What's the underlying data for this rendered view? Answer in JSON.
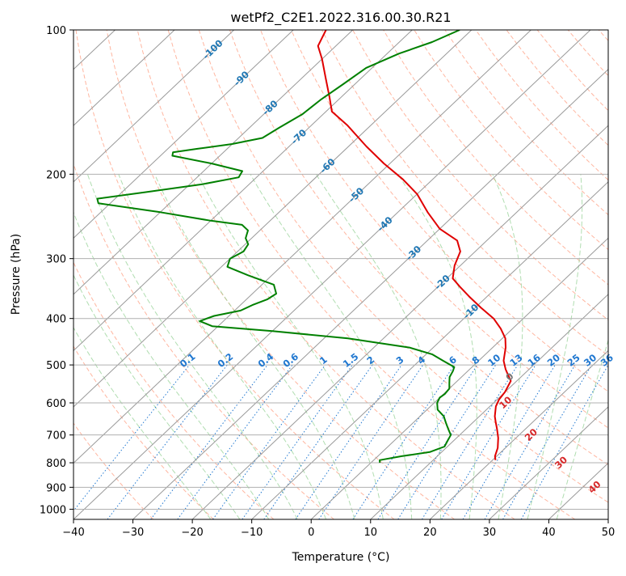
{
  "chart_data": {
    "type": "line",
    "title": "wetPf2_C2E1.2022.316.00.30.R21",
    "xlabel": "Temperature (°C)",
    "ylabel": "Pressure (hPa)",
    "xlim": [
      -40,
      50
    ],
    "ylim": [
      1050,
      100
    ],
    "y_scale": "log",
    "grid": true,
    "x_ticks": [
      "−40",
      "−30",
      "−20",
      "−10",
      "0",
      "10",
      "20",
      "30",
      "40",
      "50"
    ],
    "y_ticks": [
      {
        "p": 100,
        "label": "100"
      },
      {
        "p": 200,
        "label": "200"
      },
      {
        "p": 300,
        "label": "300"
      },
      {
        "p": 400,
        "label": "400"
      },
      {
        "p": 500,
        "label": "500"
      },
      {
        "p": 600,
        "label": "600"
      },
      {
        "p": 700,
        "label": "700"
      },
      {
        "p": 800,
        "label": "800"
      },
      {
        "p": 900,
        "label": "900"
      },
      {
        "p": 1000,
        "label": "1000"
      }
    ],
    "skew": 30,
    "colors": {
      "temperature": "#e00000",
      "dewpoint": "#008000",
      "isotherm": "#999999",
      "dry_adiabat": "#ff9e80",
      "moist_adiabat": "#8fcf8f",
      "mixing_ratio": "#1f77d0",
      "isotherm_labels": "#1f77b4",
      "cross_labels": "#d62728",
      "zero_label": "#777777"
    },
    "series": [
      {
        "key": "temperature",
        "points": [
          [
            20.5,
            790
          ],
          [
            19.7,
            775
          ],
          [
            18.7,
            745
          ],
          [
            17.0,
            710
          ],
          [
            15.2,
            680
          ],
          [
            13.9,
            660
          ],
          [
            12.6,
            640
          ],
          [
            11.0,
            610
          ],
          [
            10.3,
            590
          ],
          [
            10.0,
            570
          ],
          [
            9.0,
            540
          ],
          [
            7.0,
            520
          ],
          [
            6.0,
            510
          ],
          [
            4.2,
            490
          ],
          [
            2.2,
            460
          ],
          [
            0.5,
            440
          ],
          [
            -2.0,
            420
          ],
          [
            -5.0,
            400
          ],
          [
            -9.0,
            380
          ],
          [
            -13.0,
            360
          ],
          [
            -16.0,
            345
          ],
          [
            -19.0,
            330
          ],
          [
            -21.0,
            310
          ],
          [
            -22.5,
            290
          ],
          [
            -25.0,
            275
          ],
          [
            -30.0,
            260
          ],
          [
            -35.0,
            240
          ],
          [
            -40.0,
            220
          ],
          [
            -45.0,
            205
          ],
          [
            -51.0,
            190
          ],
          [
            -57.0,
            175
          ],
          [
            -64.0,
            158
          ],
          [
            -69.0,
            148
          ],
          [
            -72.0,
            138
          ],
          [
            -76.0,
            126
          ],
          [
            -80.0,
            115
          ],
          [
            -83.0,
            108
          ],
          [
            -84.5,
            100
          ]
        ]
      },
      {
        "key": "dewpoint",
        "points": [
          [
            1.5,
            800
          ],
          [
            1.0,
            790
          ],
          [
            4.0,
            775
          ],
          [
            8.0,
            760
          ],
          [
            9.5,
            740
          ],
          [
            9.0,
            720
          ],
          [
            8.5,
            700
          ],
          [
            7.0,
            680
          ],
          [
            5.5,
            660
          ],
          [
            4.0,
            640
          ],
          [
            1.8,
            620
          ],
          [
            0.5,
            600
          ],
          [
            0.0,
            585
          ],
          [
            0.2,
            575
          ],
          [
            0.0,
            560
          ],
          [
            -1.0,
            545
          ],
          [
            -2.0,
            530
          ],
          [
            -2.5,
            515
          ],
          [
            -3.0,
            505
          ],
          [
            -6.0,
            490
          ],
          [
            -9.0,
            475
          ],
          [
            -14.0,
            460
          ],
          [
            -26.0,
            440
          ],
          [
            -40.0,
            425
          ],
          [
            -51.0,
            415
          ],
          [
            -54.0,
            405
          ],
          [
            -52.5,
            395
          ],
          [
            -49.0,
            385
          ],
          [
            -48.0,
            375
          ],
          [
            -46.5,
            365
          ],
          [
            -46.0,
            355
          ],
          [
            -48.0,
            340
          ],
          [
            -54.0,
            325
          ],
          [
            -59.0,
            312
          ],
          [
            -60.0,
            300
          ],
          [
            -59.0,
            290
          ],
          [
            -59.5,
            280
          ],
          [
            -61.0,
            272
          ],
          [
            -62.0,
            262
          ],
          [
            -64.0,
            255
          ],
          [
            -70.0,
            250
          ],
          [
            -80.0,
            240
          ],
          [
            -92.0,
            230
          ],
          [
            -93.0,
            225
          ],
          [
            -86.0,
            218
          ],
          [
            -78.0,
            210
          ],
          [
            -73.0,
            203
          ],
          [
            -73.5,
            197
          ],
          [
            -80.0,
            190
          ],
          [
            -88.0,
            183
          ],
          [
            -88.5,
            180
          ],
          [
            -85.0,
            177
          ],
          [
            -80.0,
            173
          ],
          [
            -76.0,
            168
          ],
          [
            -75.0,
            160
          ],
          [
            -73.5,
            150
          ],
          [
            -73.0,
            140
          ],
          [
            -72.0,
            130
          ],
          [
            -71.0,
            120
          ],
          [
            -68.0,
            112
          ],
          [
            -64.5,
            106
          ],
          [
            -62.0,
            100
          ]
        ]
      }
    ],
    "isotherm_labels": [
      "-100",
      "-90",
      "-80",
      "-70",
      "-60",
      "-50",
      "-40",
      "-30",
      "-20",
      "-10"
    ],
    "isotherm_label_values": [
      -100,
      -90,
      -80,
      -70,
      -60,
      -50,
      -40,
      -30,
      -20,
      -10
    ],
    "mixing_ratio_labels": [
      "0.1",
      "0.2",
      "0.4",
      "0.6",
      "1",
      "1.5",
      "2",
      "3",
      "4",
      "6",
      "8",
      "10",
      "13",
      "16",
      "20",
      "25",
      "30",
      "36"
    ],
    "mixing_ratio_values": [
      0.1,
      0.2,
      0.4,
      0.6,
      1,
      1.5,
      2,
      3,
      4,
      6,
      8,
      10,
      13,
      16,
      20,
      25,
      30,
      36
    ],
    "zero_label": "0",
    "cross_labels": [
      "10",
      "20",
      "30",
      "40"
    ],
    "cross_label_values": [
      10,
      20,
      30,
      40
    ]
  }
}
